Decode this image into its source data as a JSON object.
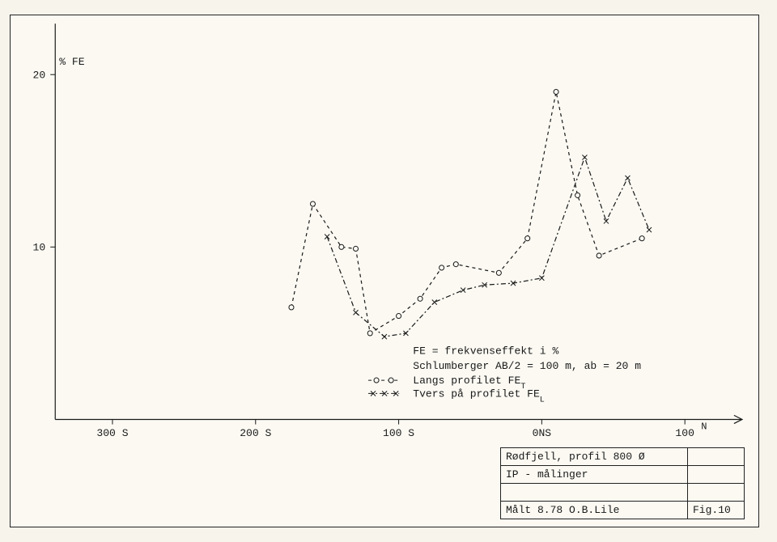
{
  "page": {
    "background_color": "#f7f4ec",
    "paper_color": "#fbf9f2",
    "border_color": "#222222",
    "punch_color": "#000000"
  },
  "chart": {
    "type": "line",
    "y_label": "% FE",
    "y_ticks": [
      10,
      20
    ],
    "y_tick_labels": [
      "10",
      "20"
    ],
    "ylim": [
      0,
      22
    ],
    "x_ticks": [
      -300,
      -200,
      -100,
      0,
      100
    ],
    "x_tick_labels": [
      "300 S",
      "200 S",
      "100 S",
      "0NS",
      "100"
    ],
    "x_end_sup": "N",
    "xlim": [
      -340,
      140
    ],
    "axis_color": "#1a1a1a",
    "label_fontsize": 13,
    "tick_fontsize": 13,
    "series": [
      {
        "name": "Langs profilet FE_T",
        "marker": "open-circle",
        "dash": "4,4",
        "color": "#1a1a1a",
        "points": [
          {
            "x": -175,
            "y": 6.5
          },
          {
            "x": -160,
            "y": 12.5
          },
          {
            "x": -140,
            "y": 10.0
          },
          {
            "x": -130,
            "y": 9.9
          },
          {
            "x": -120,
            "y": 5.0
          },
          {
            "x": -100,
            "y": 6.0
          },
          {
            "x": -85,
            "y": 7.0
          },
          {
            "x": -70,
            "y": 8.8
          },
          {
            "x": -60,
            "y": 9.0
          },
          {
            "x": -30,
            "y": 8.5
          },
          {
            "x": -10,
            "y": 10.5
          },
          {
            "x": 10,
            "y": 19.0
          },
          {
            "x": 25,
            "y": 13.0
          },
          {
            "x": 40,
            "y": 9.5
          },
          {
            "x": 70,
            "y": 10.5
          }
        ]
      },
      {
        "name": "Tvers på profilet FE_L",
        "marker": "x-mark",
        "dash": "6,3,2,3",
        "color": "#1a1a1a",
        "points": [
          {
            "x": -150,
            "y": 10.6
          },
          {
            "x": -130,
            "y": 6.2
          },
          {
            "x": -110,
            "y": 4.8
          },
          {
            "x": -95,
            "y": 5.0
          },
          {
            "x": -75,
            "y": 6.8
          },
          {
            "x": -55,
            "y": 7.5
          },
          {
            "x": -40,
            "y": 7.8
          },
          {
            "x": -20,
            "y": 7.9
          },
          {
            "x": 0,
            "y": 8.2
          },
          {
            "x": 30,
            "y": 15.2
          },
          {
            "x": 45,
            "y": 11.5
          },
          {
            "x": 60,
            "y": 14.0
          },
          {
            "x": 75,
            "y": 11.0
          }
        ]
      }
    ]
  },
  "legend": {
    "lines": [
      "FE = frekvenseffekt i %",
      "Schlumberger  AB/2 = 100 m,  ab = 20 m"
    ],
    "series_legend": [
      {
        "symbol_desc": "—○——○—",
        "label_pre": "Langs profilet  FE",
        "label_sub": "T"
      },
      {
        "symbol_desc": "×—  ×— ×",
        "label_pre": "Tvers på profilet  FE",
        "label_sub": "L"
      }
    ],
    "fontsize": 13
  },
  "infobox": {
    "row1_left": "Rødfjell,  profil  800 Ø",
    "row2_left": "IP - målinger",
    "row4_left": "Målt 8.78  O.B.Lile",
    "row4_right": "Fig.10"
  }
}
